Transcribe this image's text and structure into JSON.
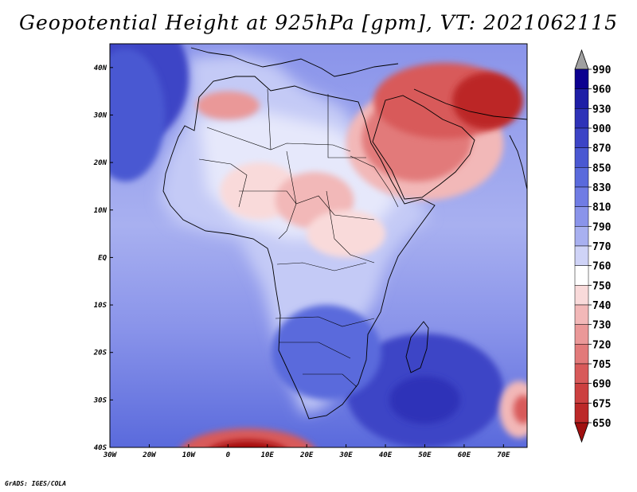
{
  "title": "Geopotential Height at 925hPa [gpm], VT: 2021062115",
  "credit": "GrADS: IGES/COLA",
  "map": {
    "lon_range": [
      -30,
      76
    ],
    "lat_range": [
      -40,
      45
    ],
    "lon_ticks": [
      {
        "value": -30,
        "label": "30W"
      },
      {
        "value": -20,
        "label": "20W"
      },
      {
        "value": -10,
        "label": "10W"
      },
      {
        "value": 0,
        "label": "0"
      },
      {
        "value": 10,
        "label": "10E"
      },
      {
        "value": 20,
        "label": "20E"
      },
      {
        "value": 30,
        "label": "30E"
      },
      {
        "value": 40,
        "label": "40E"
      },
      {
        "value": 50,
        "label": "50E"
      },
      {
        "value": 60,
        "label": "60E"
      },
      {
        "value": 70,
        "label": "70E"
      }
    ],
    "lat_ticks": [
      {
        "value": 40,
        "label": "40N"
      },
      {
        "value": 30,
        "label": "30N"
      },
      {
        "value": 20,
        "label": "20N"
      },
      {
        "value": 10,
        "label": "10N"
      },
      {
        "value": 0,
        "label": "EQ"
      },
      {
        "value": -10,
        "label": "10S"
      },
      {
        "value": -20,
        "label": "20S"
      },
      {
        "value": -30,
        "label": "30S"
      },
      {
        "value": -40,
        "label": "40S"
      }
    ]
  },
  "colorbar": {
    "levels": [
      {
        "label": "990",
        "color": "#0c0090"
      },
      {
        "label": "960",
        "color": "#1e1ea6"
      },
      {
        "label": "930",
        "color": "#2e32b8"
      },
      {
        "label": "900",
        "color": "#3c44c6"
      },
      {
        "label": "870",
        "color": "#4a58d2"
      },
      {
        "label": "850",
        "color": "#5a6adc"
      },
      {
        "label": "830",
        "color": "#707ce4"
      },
      {
        "label": "810",
        "color": "#8a94ea"
      },
      {
        "label": "790",
        "color": "#a8b0f0"
      },
      {
        "label": "770",
        "color": "#cfd3f7"
      },
      {
        "label": "760",
        "color": "#ffffff"
      },
      {
        "label": "750",
        "color": "#f9dada"
      },
      {
        "label": "740",
        "color": "#f2b8b8"
      },
      {
        "label": "730",
        "color": "#ea9898"
      },
      {
        "label": "720",
        "color": "#e27a7a"
      },
      {
        "label": "705",
        "color": "#d85a5a"
      },
      {
        "label": "690",
        "color": "#cc4040"
      },
      {
        "label": "675",
        "color": "#bc2828"
      },
      {
        "label": "650",
        "color": "#a81010"
      }
    ],
    "over_color": "#a0a0a0",
    "under_color": "#a01010"
  },
  "field_blobs": [
    {
      "lon": -24,
      "lat": 38,
      "rx": 14,
      "ry": 14,
      "color": "#3c44c6"
    },
    {
      "lon": -26,
      "lat": 30,
      "rx": 10,
      "ry": 14,
      "color": "#4a58d2"
    },
    {
      "lon": 50,
      "lat": -28,
      "rx": 20,
      "ry": 12,
      "color": "#3c44c6"
    },
    {
      "lon": 50,
      "lat": -30,
      "rx": 9,
      "ry": 5,
      "color": "#2e32b8"
    },
    {
      "lon": 25,
      "lat": -20,
      "rx": 14,
      "ry": 10,
      "color": "#5a6adc"
    },
    {
      "lon": 5,
      "lat": -42,
      "rx": 18,
      "ry": 6,
      "color": "#d85a5a"
    },
    {
      "lon": 5,
      "lat": -42,
      "rx": 11,
      "ry": 3.5,
      "color": "#a81010"
    },
    {
      "lon": 74,
      "lat": -32,
      "rx": 5,
      "ry": 6,
      "color": "#f2b8b8"
    },
    {
      "lon": 75,
      "lat": -32,
      "rx": 2.5,
      "ry": 3,
      "color": "#d85a5a"
    },
    {
      "lon": 50,
      "lat": 24,
      "rx": 20,
      "ry": 12,
      "color": "#f2b8b8"
    },
    {
      "lon": 48,
      "lat": 25,
      "rx": 14,
      "ry": 9,
      "color": "#e27a7a"
    },
    {
      "lon": 55,
      "lat": 33,
      "rx": 18,
      "ry": 8,
      "color": "#d85a5a"
    },
    {
      "lon": 66,
      "lat": 33,
      "rx": 9,
      "ry": 6,
      "color": "#bc2828"
    },
    {
      "lon": 8,
      "lat": 14,
      "rx": 10,
      "ry": 6,
      "color": "#f9dada"
    },
    {
      "lon": 22,
      "lat": 12,
      "rx": 10,
      "ry": 6,
      "color": "#f2b8b8"
    },
    {
      "lon": 30,
      "lat": 5,
      "rx": 10,
      "ry": 5,
      "color": "#f9dada"
    },
    {
      "lon": 0,
      "lat": 32,
      "rx": 8,
      "ry": 3,
      "color": "#ea9898"
    }
  ]
}
